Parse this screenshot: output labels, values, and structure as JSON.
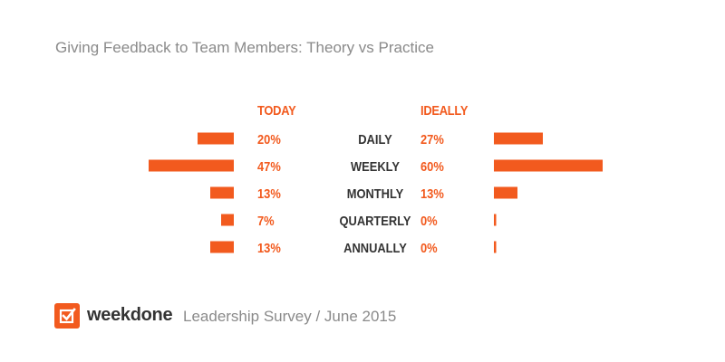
{
  "colors": {
    "accent": "#f25a1e",
    "category_text": "#333333",
    "title_text": "#8a8a8a"
  },
  "chart_data": {
    "type": "bar",
    "title": "Giving Feedback to Team Members: Theory vs Practice",
    "categories": [
      "DAILY",
      "WEEKLY",
      "MONTHLY",
      "QUARTERLY",
      "ANNUALLY"
    ],
    "series": [
      {
        "name": "TODAY",
        "values": [
          20,
          47,
          13,
          7,
          13
        ],
        "labels": [
          "20%",
          "47%",
          "13%",
          "7%",
          "13%"
        ],
        "direction": "left"
      },
      {
        "name": "IDEALLY",
        "values": [
          27,
          60,
          13,
          0,
          0
        ],
        "labels": [
          "27%",
          "60%",
          "13%",
          "0%",
          "0%"
        ],
        "direction": "right"
      }
    ],
    "unit": "%",
    "grid": false,
    "legend": "none"
  },
  "footer": {
    "brand": "weekdone",
    "source": "Leadership Survey / June 2015",
    "logo_icon": "checkmark-box-icon"
  }
}
